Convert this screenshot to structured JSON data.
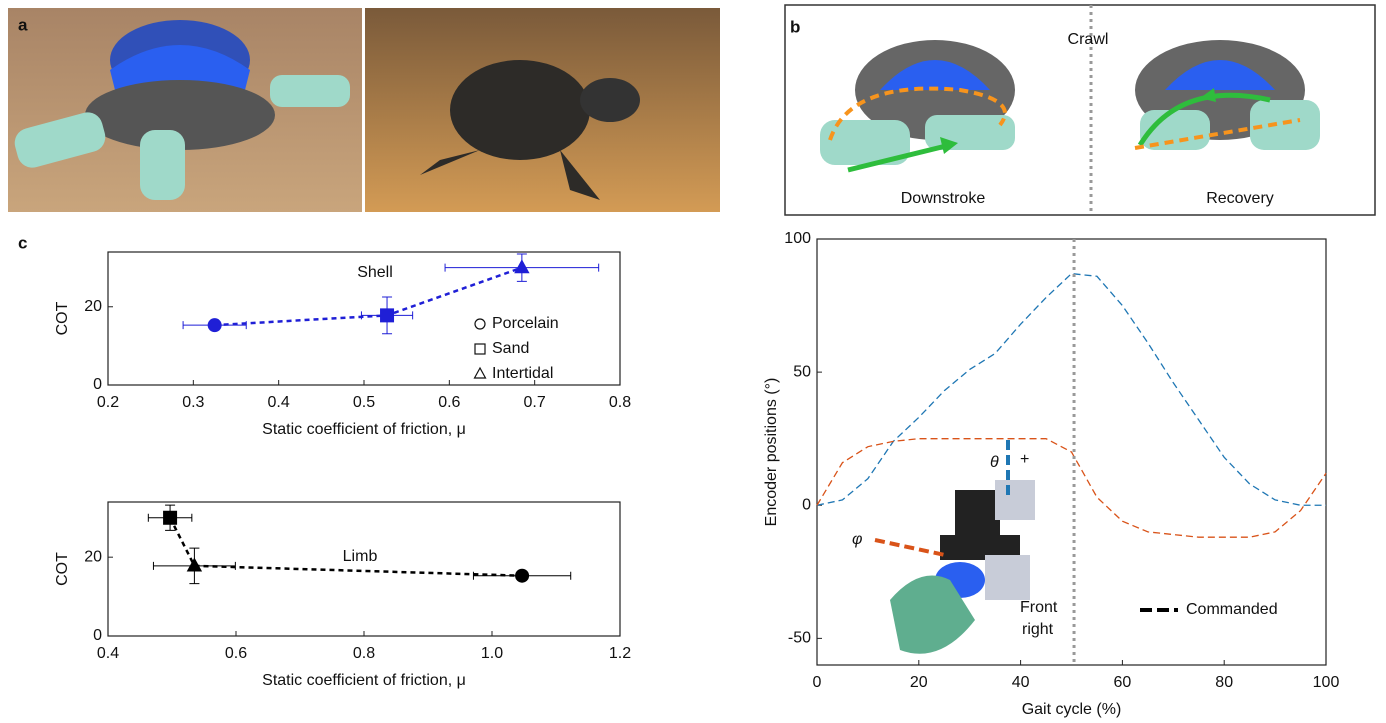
{
  "panel_labels": [
    "a",
    "b",
    "c"
  ],
  "gait_illustration": {
    "title": "Crawl",
    "left_label": "Downstroke",
    "right_label": "Recovery"
  },
  "chart_data": [
    {
      "type": "scatter",
      "annotation": "Shell",
      "xlabel": "Static coefficient of friction, μ",
      "ylabel": "COT",
      "color": "#1f1fd6",
      "connect": true,
      "x": [
        0.325,
        0.527,
        0.685
      ],
      "values": [
        15.3,
        17.8,
        30
      ],
      "x_err": [
        0.037,
        0.03,
        0.09
      ],
      "y_err": [
        0.5,
        4.7,
        3.5
      ],
      "markers": [
        "circle",
        "square",
        "triangle"
      ],
      "legend": [
        {
          "label": "Porcelain",
          "marker": "circle"
        },
        {
          "label": "Sand",
          "marker": "square"
        },
        {
          "label": "Intertidal",
          "marker": "triangle"
        }
      ],
      "xlim": [
        0.2,
        0.8
      ],
      "xticks": [
        0.2,
        0.3,
        0.4,
        0.5,
        0.6,
        0.7,
        0.8
      ],
      "ylim": [
        0,
        34
      ],
      "yticks": [
        0,
        20
      ]
    },
    {
      "type": "scatter",
      "annotation": "Limb",
      "xlabel": "Static coefficient of friction, μ",
      "ylabel": "COT",
      "color": "#000000",
      "connect": true,
      "x": [
        0.497,
        0.535,
        1.047
      ],
      "values": [
        30,
        17.8,
        15.3
      ],
      "x_err": [
        0.034,
        0.064,
        0.076
      ],
      "y_err": [
        3.2,
        4.5,
        0.5
      ],
      "markers": [
        "square",
        "triangle",
        "circle"
      ],
      "xlim": [
        0.4,
        1.2
      ],
      "xticks": [
        0.4,
        0.6,
        0.8,
        {
          "value": 1,
          "label": "1.0"
        },
        1.2
      ],
      "ylim": [
        0,
        34
      ],
      "yticks": [
        0,
        20
      ]
    },
    {
      "type": "line",
      "xlabel": "Gait cycle (%)",
      "ylabel": "Encoder positions (°)",
      "x": [
        0,
        5,
        10,
        15,
        20,
        25,
        30,
        35,
        40,
        45,
        50,
        55,
        60,
        65,
        70,
        75,
        80,
        85,
        90,
        95,
        100
      ],
      "series": [
        {
          "color": "#1f77b4",
          "values": [
            0,
            2,
            10,
            24,
            33,
            43,
            51,
            57,
            68,
            78,
            87,
            86,
            75,
            61,
            46,
            32,
            18,
            8,
            2,
            0,
            0
          ]
        },
        {
          "color": "#d95319",
          "values": [
            0,
            16,
            22,
            24,
            25,
            25,
            25,
            25,
            25,
            25,
            20,
            3,
            -6,
            -10,
            -11,
            -12,
            -12,
            -12,
            -10,
            -2,
            12
          ]
        }
      ],
      "vline": 50.5,
      "legend": {
        "label": "Commanded",
        "color": "#000000"
      },
      "inset_labels": {
        "theta": "θ",
        "plus": "+",
        "phi": "φ",
        "front": "Front",
        "right": "right"
      },
      "xlim": [
        0,
        100
      ],
      "xticks": [
        0,
        20,
        40,
        60,
        80,
        100
      ],
      "ylim": [
        -60,
        100
      ],
      "yticks": [
        -50,
        0,
        50,
        100
      ]
    }
  ]
}
